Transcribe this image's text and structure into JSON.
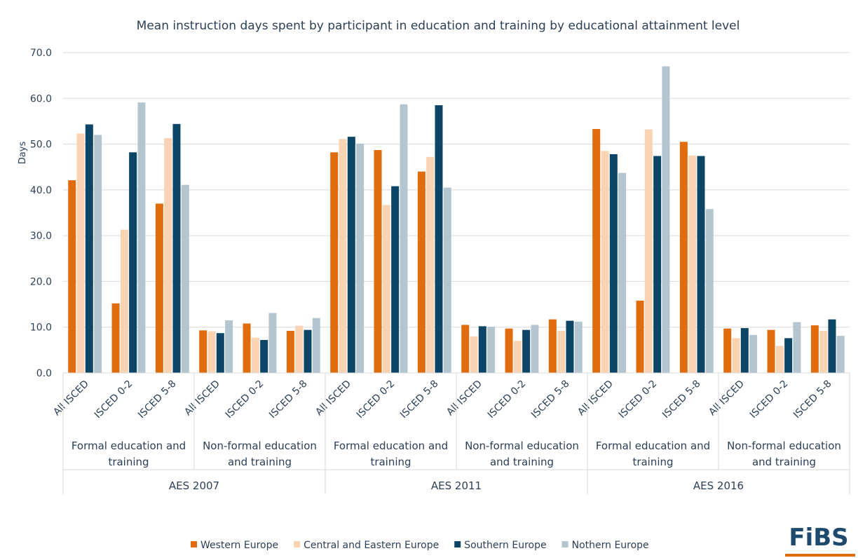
{
  "chart_data": {
    "type": "bar",
    "title": "Mean instruction days spent by participant in  education and training by educational attainment level",
    "y_label": "Days",
    "categories": [
      "All ISCED",
      "ISCED  0-2",
      "ISCED 5-8",
      "All ISCED",
      "ISCED  0-2",
      "ISCED 5-8",
      "All ISCED",
      "ISCED  0-2",
      "ISCED 5-8",
      "All ISCED",
      "ISCED  0-2",
      "ISCED 5-8",
      "All ISCED",
      "ISCED  0-2",
      "ISCED 5-8",
      "All ISCED",
      "ISCED  0-2",
      "ISCED 5-8"
    ],
    "subgroups": [
      "Formal education and training",
      "Non-formal education and training",
      "Formal education and training",
      "Non-formal education and training",
      "Formal education and training",
      "Non-formal education and training"
    ],
    "groups": [
      "AES 2007",
      "AES 2011",
      "AES 2016"
    ],
    "series": [
      {
        "name": "Western Europe",
        "color": "#e06c0e",
        "values": [
          42.1,
          15.2,
          37.0,
          9.3,
          10.8,
          9.2,
          48.2,
          48.7,
          44.0,
          10.5,
          9.7,
          11.7,
          53.3,
          15.8,
          50.5,
          9.7,
          9.4,
          10.4
        ]
      },
      {
        "name": "Central and Eastern Europe",
        "color": "#fad3b2",
        "values": [
          52.3,
          31.3,
          51.3,
          9.1,
          7.7,
          10.3,
          51.1,
          36.7,
          47.2,
          8.0,
          7.0,
          9.2,
          48.5,
          53.2,
          47.5,
          7.6,
          5.9,
          9.2
        ]
      },
      {
        "name": "Southern Europe",
        "color": "#0d4566",
        "values": [
          54.3,
          48.2,
          54.4,
          8.7,
          7.2,
          9.4,
          51.6,
          40.8,
          58.5,
          10.2,
          9.4,
          11.4,
          47.8,
          47.4,
          47.4,
          9.8,
          7.6,
          11.7
        ]
      },
      {
        "name": "Nothern Europe",
        "color": "#b3c6d0",
        "values": [
          52.0,
          59.1,
          41.1,
          11.5,
          13.1,
          12.0,
          50.1,
          58.7,
          40.5,
          10.1,
          10.5,
          11.2,
          43.7,
          67.0,
          35.8,
          8.3,
          11.1,
          8.1
        ]
      }
    ],
    "ylim": [
      0,
      70
    ],
    "yticks": [
      {
        "value": 0,
        "label": "0.0"
      },
      {
        "value": 10,
        "label": "10.0"
      },
      {
        "value": 20,
        "label": "20.0"
      },
      {
        "value": 30,
        "label": "30.0"
      },
      {
        "value": 40,
        "label": "40.0"
      },
      {
        "value": 50,
        "label": "50.0"
      },
      {
        "value": 60,
        "label": "60.0"
      },
      {
        "value": 70,
        "label": "70.0"
      }
    ],
    "grid": true
  },
  "logo": "FiBS"
}
